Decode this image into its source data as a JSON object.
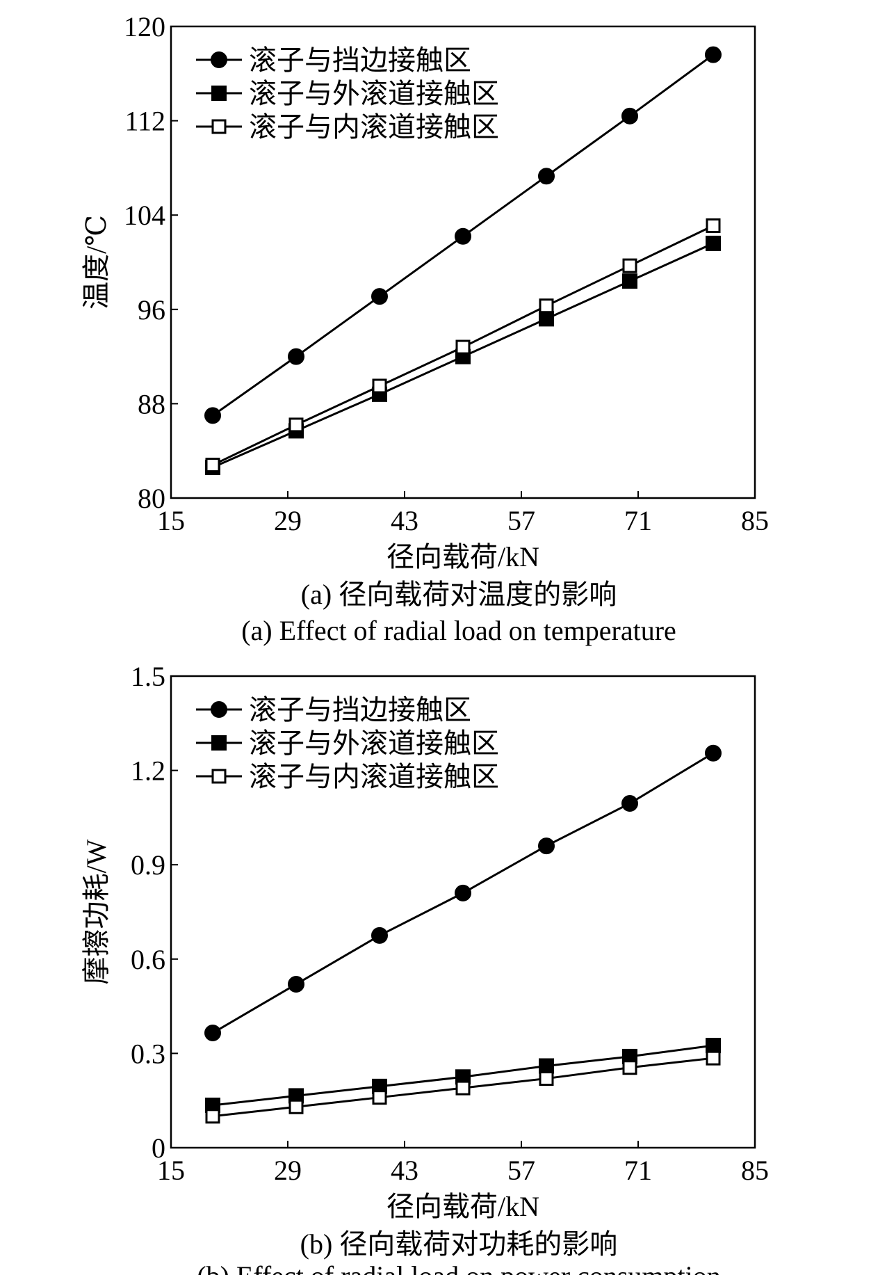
{
  "chart_data": [
    {
      "type": "line",
      "xlabel": "径向载荷/kN",
      "ylabel": "温度/℃",
      "xlim": [
        15,
        85
      ],
      "ylim": [
        80,
        120
      ],
      "xticks": [
        15,
        29,
        43,
        57,
        71,
        85
      ],
      "yticks": [
        80,
        88,
        96,
        104,
        112,
        120
      ],
      "ytick_labels": [
        "80",
        "88",
        "96",
        "104",
        "112",
        "120"
      ],
      "x": [
        20,
        30,
        40,
        50,
        60,
        70,
        80
      ],
      "legend_position": "top-left",
      "grid": false,
      "series": [
        {
          "name": "滚子与挡边接触区",
          "marker": "filled-circle",
          "values": [
            87.0,
            92.0,
            97.1,
            102.2,
            107.3,
            112.4,
            117.6
          ]
        },
        {
          "name": "滚子与外滚道接触区",
          "marker": "filled-square",
          "values": [
            82.6,
            85.7,
            88.8,
            92.0,
            95.2,
            98.4,
            101.6
          ]
        },
        {
          "name": "滚子与内滚道接触区",
          "marker": "open-square",
          "values": [
            82.8,
            86.2,
            89.5,
            92.8,
            96.3,
            99.7,
            103.1
          ]
        }
      ],
      "caption_cn": "(a) 径向载荷对温度的影响",
      "caption_en": "(a) Effect of radial load on temperature"
    },
    {
      "type": "line",
      "xlabel": "径向载荷/kN",
      "ylabel": "摩擦功耗/W",
      "xlim": [
        15,
        85
      ],
      "ylim": [
        0,
        1.5
      ],
      "xticks": [
        15,
        29,
        43,
        57,
        71,
        85
      ],
      "yticks": [
        0,
        0.3,
        0.6,
        0.9,
        1.2,
        1.5
      ],
      "ytick_labels": [
        "0",
        "0.3",
        "0.6",
        "0.9",
        "1.2",
        "1.5"
      ],
      "x": [
        20,
        30,
        40,
        50,
        60,
        70,
        80
      ],
      "legend_position": "top-left",
      "grid": false,
      "series": [
        {
          "name": "滚子与挡边接触区",
          "marker": "filled-circle",
          "values": [
            0.365,
            0.52,
            0.675,
            0.81,
            0.96,
            1.095,
            1.255
          ]
        },
        {
          "name": "滚子与外滚道接触区",
          "marker": "filled-square",
          "values": [
            0.135,
            0.165,
            0.195,
            0.225,
            0.26,
            0.29,
            0.325
          ]
        },
        {
          "name": "滚子与内滚道接触区",
          "marker": "open-square",
          "values": [
            0.1,
            0.13,
            0.16,
            0.19,
            0.22,
            0.255,
            0.285
          ]
        }
      ],
      "caption_cn": "(b) 径向载荷对功耗的影响",
      "caption_en": "(b) Effect of radial load on power consumption"
    }
  ]
}
